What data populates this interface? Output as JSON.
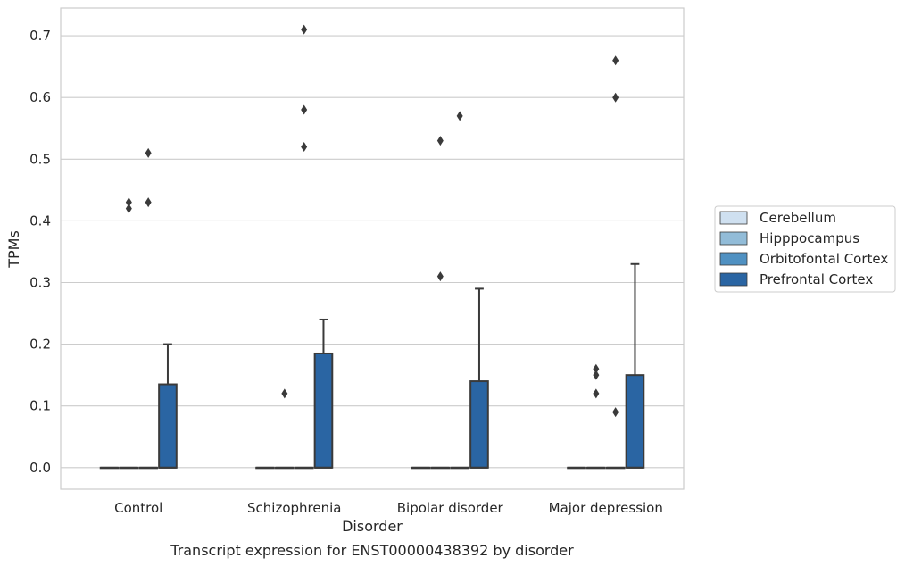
{
  "caption": "Transcript expression for ENST00000438392 by disorder",
  "chart_data": {
    "type": "box",
    "xlabel": "Disorder",
    "ylabel": "TPMs",
    "ylim": [
      -0.035,
      0.745
    ],
    "yticks": [
      0.0,
      0.1,
      0.2,
      0.3,
      0.4,
      0.5,
      0.6,
      0.7
    ],
    "ytick_labels": [
      "0.0",
      "0.1",
      "0.2",
      "0.3",
      "0.4",
      "0.5",
      "0.6",
      "0.7"
    ],
    "grid": true,
    "legend_position": "right",
    "categories": [
      "Control",
      "Schizophrenia",
      "Bipolar disorder",
      "Major depression"
    ],
    "series": [
      {
        "name": "Cerebellum",
        "color": "#cfe0f0",
        "boxes": [
          {
            "q1": 0,
            "median": 0,
            "q3": 0,
            "whisker_low": 0,
            "whisker_high": 0,
            "outliers": []
          },
          {
            "q1": 0,
            "median": 0,
            "q3": 0,
            "whisker_low": 0,
            "whisker_high": 0,
            "outliers": []
          },
          {
            "q1": 0,
            "median": 0,
            "q3": 0,
            "whisker_low": 0,
            "whisker_high": 0,
            "outliers": []
          },
          {
            "q1": 0,
            "median": 0,
            "q3": 0,
            "whisker_low": 0,
            "whisker_high": 0,
            "outliers": []
          }
        ]
      },
      {
        "name": "Hipppocampus",
        "color": "#92bcd8",
        "boxes": [
          {
            "q1": 0,
            "median": 0,
            "q3": 0,
            "whisker_low": 0,
            "whisker_high": 0,
            "outliers": [
              0.42,
              0.43
            ]
          },
          {
            "q1": 0,
            "median": 0,
            "q3": 0,
            "whisker_low": 0,
            "whisker_high": 0,
            "outliers": [
              0.12
            ]
          },
          {
            "q1": 0,
            "median": 0,
            "q3": 0,
            "whisker_low": 0,
            "whisker_high": 0,
            "outliers": [
              0.31,
              0.53
            ]
          },
          {
            "q1": 0,
            "median": 0,
            "q3": 0,
            "whisker_low": 0,
            "whisker_high": 0,
            "outliers": [
              0.12,
              0.15,
              0.16
            ]
          }
        ]
      },
      {
        "name": "Orbitofontal Cortex",
        "color": "#5091c2",
        "boxes": [
          {
            "q1": 0,
            "median": 0,
            "q3": 0,
            "whisker_low": 0,
            "whisker_high": 0,
            "outliers": [
              0.43,
              0.51
            ]
          },
          {
            "q1": 0,
            "median": 0,
            "q3": 0,
            "whisker_low": 0,
            "whisker_high": 0,
            "outliers": [
              0.52,
              0.58,
              0.71
            ]
          },
          {
            "q1": 0,
            "median": 0,
            "q3": 0,
            "whisker_low": 0,
            "whisker_high": 0,
            "outliers": [
              0.57
            ]
          },
          {
            "q1": 0,
            "median": 0,
            "q3": 0,
            "whisker_low": 0,
            "whisker_high": 0,
            "outliers": [
              0.09,
              0.6,
              0.66
            ]
          }
        ]
      },
      {
        "name": "Prefrontal Cortex",
        "color": "#2a65a3",
        "boxes": [
          {
            "q1": 0,
            "median": 0,
            "q3": 0.135,
            "whisker_low": 0,
            "whisker_high": 0.2,
            "outliers": []
          },
          {
            "q1": 0,
            "median": 0,
            "q3": 0.185,
            "whisker_low": 0,
            "whisker_high": 0.24,
            "outliers": []
          },
          {
            "q1": 0,
            "median": 0,
            "q3": 0.14,
            "whisker_low": 0,
            "whisker_high": 0.29,
            "outliers": []
          },
          {
            "q1": 0,
            "median": 0,
            "q3": 0.15,
            "whisker_low": 0,
            "whisker_high": 0.33,
            "outliers": []
          }
        ]
      }
    ]
  }
}
